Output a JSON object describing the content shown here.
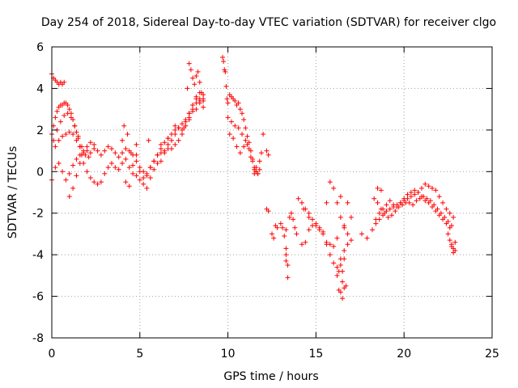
{
  "chart_data": {
    "type": "scatter",
    "title": "Day 254 of 2018, Sidereal Day-to-day VTEC variation (SDTVAR) for receiver clgo",
    "xlabel": "GPS time / hours",
    "ylabel": "SDTVAR / TECUs",
    "xlim": [
      0,
      25
    ],
    "ylim": [
      -8,
      6
    ],
    "xticks": [
      0,
      5,
      10,
      15,
      20,
      25
    ],
    "yticks": [
      -8,
      -6,
      -4,
      -2,
      0,
      2,
      4,
      6
    ],
    "grid": true,
    "marker": "+",
    "marker_color": "#ff0000",
    "series": [
      {
        "name": "SDTVAR",
        "x": [
          0.0,
          0.1,
          0.2,
          0.3,
          0.4,
          0.5,
          0.6,
          0.7,
          0.0,
          0.1,
          0.2,
          0.3,
          0.4,
          0.5,
          0.6,
          0.7,
          0.8,
          0.9,
          1.0,
          1.1,
          1.2,
          1.3,
          1.4,
          1.5,
          1.6,
          1.7,
          0.1,
          0.3,
          0.5,
          0.7,
          0.9,
          1.1,
          1.3,
          1.5,
          1.7,
          1.9,
          2.1,
          0.2,
          0.4,
          0.6,
          0.8,
          1.0,
          1.2,
          1.4,
          1.6,
          1.8,
          2.0,
          2.2,
          2.4,
          0.0,
          0.2,
          0.4,
          0.6,
          0.8,
          1.0,
          1.2,
          1.4,
          1.6,
          1.8,
          2.0,
          2.2,
          2.4,
          2.6,
          2.8,
          3.0,
          3.2,
          3.4,
          3.6,
          3.8,
          4.0,
          4.2,
          4.4,
          4.6,
          4.8,
          5.0,
          5.2,
          5.4,
          5.6,
          5.8,
          6.0,
          6.2,
          6.4,
          6.6,
          6.8,
          7.0,
          7.2,
          7.4,
          7.6,
          7.8,
          8.0,
          8.2,
          8.4,
          8.6,
          1.0,
          1.2,
          1.4,
          1.6,
          1.8,
          2.0,
          2.2,
          2.4,
          2.6,
          2.8,
          3.0,
          3.2,
          3.4,
          3.6,
          3.8,
          4.0,
          4.2,
          4.4,
          4.6,
          4.8,
          5.0,
          5.2,
          5.4,
          5.6,
          5.8,
          6.0,
          6.2,
          6.4,
          6.6,
          6.8,
          7.0,
          7.2,
          7.4,
          7.6,
          7.8,
          8.0,
          8.2,
          8.4,
          8.6,
          4.2,
          4.4,
          4.6,
          4.8,
          5.0,
          5.2,
          5.4,
          5.6,
          5.8,
          6.0,
          6.2,
          6.4,
          6.6,
          6.8,
          7.0,
          7.2,
          7.4,
          7.6,
          7.8,
          8.0,
          8.2,
          8.4,
          4.0,
          4.1,
          4.3,
          4.5,
          4.8,
          5.5,
          6.2,
          6.6,
          7.0,
          7.5,
          7.7,
          7.8,
          7.9,
          8.0,
          8.1,
          8.2,
          8.3,
          8.4,
          8.5,
          8.6,
          7.8,
          8.0,
          8.2,
          8.4,
          8.6,
          9.7,
          9.75,
          9.8,
          9.85,
          9.9,
          9.95,
          10.0,
          10.1,
          10.2,
          10.3,
          10.4,
          10.5,
          10.6,
          10.7,
          10.8,
          10.9,
          11.0,
          11.1,
          11.2,
          11.3,
          11.4,
          11.5,
          11.6,
          11.7,
          10.0,
          10.2,
          10.4,
          10.6,
          10.8,
          11.0,
          11.2,
          11.4,
          11.6,
          10.1,
          10.3,
          10.5,
          10.7,
          10.9,
          11.1,
          11.3,
          11.5,
          11.7,
          11.8,
          11.9,
          12.0,
          12.2,
          12.3,
          11.8,
          11.6,
          11.5,
          12.2,
          12.3,
          12.5,
          12.6,
          12.7,
          12.8,
          13.0,
          13.1,
          13.2,
          13.3,
          13.5,
          13.6,
          13.7,
          13.8,
          13.9,
          14.0,
          14.2,
          14.4,
          14.6,
          14.8,
          15.0,
          15.2,
          15.4,
          15.6,
          15.8,
          16.0,
          16.2,
          16.4,
          16.6,
          16.8,
          17.0,
          14.2,
          14.4,
          14.6,
          14.8,
          15.0,
          15.2,
          15.4,
          15.6,
          15.8,
          16.0,
          16.2,
          16.4,
          16.6,
          16.8,
          17.0,
          15.6,
          15.8,
          16.0,
          16.2,
          16.4,
          16.6,
          16.8,
          16.2,
          16.4,
          16.6,
          16.3,
          16.5,
          16.7,
          16.4,
          16.5,
          16.6,
          13.3,
          13.3,
          13.3,
          13.4,
          13.4,
          14.3,
          14.6,
          16.3,
          16.5,
          17.6,
          17.9,
          18.2,
          18.4,
          18.6,
          18.8,
          19.0,
          19.2,
          19.4,
          19.6,
          19.8,
          20.0,
          20.2,
          20.4,
          20.6,
          20.8,
          21.0,
          21.2,
          21.4,
          21.6,
          21.8,
          22.0,
          22.2,
          22.4,
          22.6,
          22.8,
          18.3,
          18.5,
          18.7,
          18.9,
          19.1,
          19.3,
          19.5,
          19.7,
          19.9,
          20.1,
          20.3,
          20.5,
          20.7,
          20.9,
          21.1,
          21.3,
          21.5,
          21.7,
          21.9,
          22.1,
          22.3,
          22.5,
          22.7,
          18.4,
          18.6,
          18.8,
          19.0,
          19.2,
          19.4,
          19.6,
          19.8,
          20.0,
          20.2,
          20.4,
          20.6,
          20.8,
          21.0,
          21.2,
          21.4,
          21.6,
          21.8,
          22.0,
          22.2,
          22.4,
          22.6,
          22.5,
          22.6,
          22.7,
          22.8,
          22.9,
          22.7,
          22.8,
          22.9,
          18.5,
          18.7
        ],
        "y": [
          4.7,
          4.5,
          4.4,
          4.3,
          4.2,
          4.3,
          4.2,
          4.3,
          1.8,
          2.2,
          2.6,
          2.9,
          3.1,
          3.2,
          3.2,
          3.3,
          3.3,
          3.2,
          3.0,
          2.8,
          2.5,
          2.2,
          1.9,
          1.6,
          1.2,
          0.8,
          1.5,
          2.0,
          2.4,
          2.7,
          2.8,
          2.6,
          2.2,
          1.7,
          1.2,
          0.8,
          0.7,
          1.2,
          1.5,
          1.7,
          1.8,
          1.9,
          1.8,
          1.5,
          1.2,
          1.0,
          1.0,
          0.9,
          1.1,
          -0.4,
          0.2,
          0.4,
          0.0,
          -0.4,
          -0.1,
          0.3,
          0.6,
          0.8,
          0.4,
          0.0,
          -0.3,
          -0.5,
          -0.6,
          -0.5,
          -0.1,
          0.2,
          0.4,
          0.2,
          0.1,
          0.4,
          0.6,
          0.2,
          -0.1,
          -0.2,
          -0.4,
          -0.3,
          -0.1,
          0.2,
          0.5,
          0.8,
          0.9,
          1.0,
          1.1,
          1.1,
          1.3,
          1.5,
          1.8,
          2.2,
          2.6,
          3.0,
          3.3,
          3.5,
          3.4,
          -1.2,
          -0.8,
          -0.2,
          0.4,
          0.9,
          1.2,
          1.4,
          1.3,
          1.0,
          0.8,
          1.0,
          1.2,
          1.1,
          0.9,
          0.7,
          0.9,
          1.1,
          1.0,
          0.8,
          0.5,
          0.2,
          0.0,
          -0.2,
          0.2,
          0.5,
          0.8,
          1.1,
          1.4,
          1.6,
          1.8,
          2.0,
          2.1,
          2.3,
          2.5,
          2.8,
          3.2,
          3.6,
          3.8,
          3.7,
          -0.5,
          -0.7,
          0.3,
          0.8,
          0.0,
          -0.6,
          -0.8,
          -0.3,
          0.1,
          0.4,
          0.5,
          0.9,
          1.3,
          1.5,
          1.8,
          2.1,
          2.0,
          2.4,
          2.8,
          3.2,
          3.5,
          3.3,
          1.5,
          2.2,
          1.8,
          0.9,
          1.3,
          1.5,
          1.3,
          1.6,
          2.2,
          2.1,
          4.0,
          5.2,
          4.9,
          4.5,
          4.2,
          4.6,
          4.8,
          4.3,
          3.8,
          3.5,
          2.5,
          2.9,
          3.0,
          3.4,
          3.1,
          5.5,
          5.3,
          4.9,
          4.8,
          4.1,
          3.5,
          3.3,
          3.7,
          3.6,
          3.5,
          3.4,
          3.2,
          3.3,
          3.0,
          2.8,
          2.5,
          2.1,
          1.7,
          1.4,
          1.0,
          0.5,
          0.2,
          0.0,
          -0.1,
          2.6,
          2.4,
          2.2,
          2.1,
          1.8,
          1.5,
          1.1,
          0.6,
          0.2,
          1.8,
          1.6,
          1.2,
          0.9,
          1.2,
          1.3,
          0.7,
          0.1,
          -0.1,
          0.5,
          0.9,
          1.8,
          1.0,
          0.8,
          0.1,
          0.0,
          -0.1,
          -1.8,
          -1.9,
          -3.0,
          -3.2,
          -2.6,
          -2.7,
          -2.5,
          -2.7,
          -3.1,
          -2.8,
          -2.2,
          -2.0,
          -2.3,
          -2.7,
          -3.0,
          -1.3,
          -1.5,
          -1.8,
          -2.0,
          -2.3,
          -2.6,
          -2.8,
          -3.0,
          -1.5,
          -0.5,
          -0.8,
          -1.5,
          -2.2,
          -2.6,
          -3.0,
          -3.3,
          -3.5,
          -3.4,
          -2.8,
          -2.6,
          -2.5,
          -2.7,
          -2.9,
          -3.4,
          -3.5,
          -3.6,
          -3.2,
          -1.2,
          -2.7,
          -1.5,
          -2.2,
          -3.5,
          -4.0,
          -4.4,
          -4.6,
          -4.2,
          -3.8,
          -3.5,
          -5.0,
          -4.5,
          -4.2,
          -4.8,
          -5.3,
          -5.5,
          -5.8,
          -6.1,
          -5.6,
          -4.0,
          -3.7,
          -4.3,
          -5.1,
          -4.5,
          -1.8,
          -2.2,
          -5.7,
          -4.8,
          -3.0,
          -3.2,
          -2.8,
          -2.3,
          -2.0,
          -1.8,
          -1.6,
          -1.4,
          -1.6,
          -1.7,
          -1.5,
          -1.4,
          -1.3,
          -1.2,
          -1.1,
          -1.0,
          -0.8,
          -0.6,
          -0.7,
          -0.8,
          -0.9,
          -1.2,
          -1.5,
          -1.8,
          -2.0,
          -2.2,
          -1.3,
          -1.5,
          -1.8,
          -2.0,
          -2.2,
          -2.1,
          -1.9,
          -1.7,
          -1.6,
          -1.5,
          -1.5,
          -1.6,
          -1.4,
          -1.3,
          -1.2,
          -1.3,
          -1.4,
          -1.6,
          -1.8,
          -2.0,
          -2.2,
          -2.4,
          -2.6,
          -2.5,
          -2.3,
          -2.1,
          -1.9,
          -1.8,
          -1.7,
          -1.6,
          -1.5,
          -1.3,
          -1.1,
          -1.0,
          -0.9,
          -1.0,
          -1.2,
          -1.4,
          -1.5,
          -1.7,
          -1.9,
          -2.1,
          -2.3,
          -2.5,
          -2.7,
          -3.0,
          -3.3,
          -3.5,
          -3.7,
          -3.8,
          -3.6,
          -3.9,
          -3.4,
          -0.8,
          -0.9
        ]
      }
    ]
  }
}
